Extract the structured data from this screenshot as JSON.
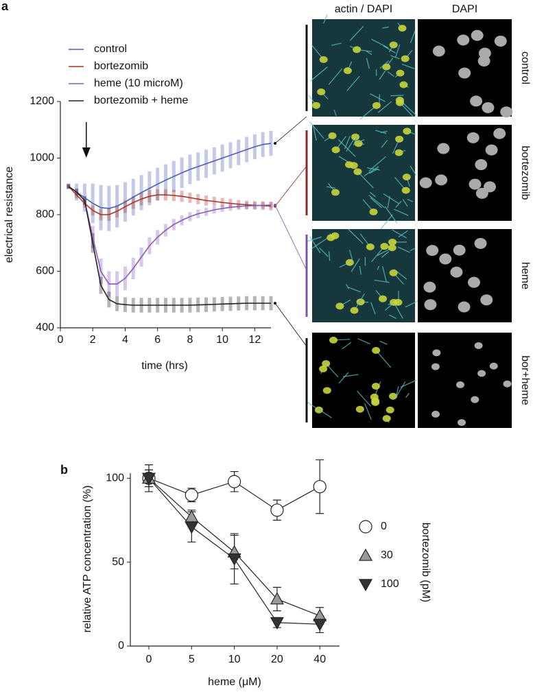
{
  "chart_data": [
    {
      "panel": "a",
      "type": "line",
      "xlabel": "time (hrs)",
      "ylabel": "electrical resistance",
      "x": [
        0.5,
        1,
        1.5,
        2,
        2.5,
        3,
        3.5,
        4,
        4.5,
        5,
        5.5,
        6,
        6.5,
        7,
        7.5,
        8,
        8.5,
        9,
        9.5,
        10,
        10.5,
        11,
        11.5,
        12,
        12.5,
        13
      ],
      "xlim": [
        0,
        13
      ],
      "xticks": [
        0,
        2,
        4,
        6,
        8,
        10,
        12
      ],
      "ylim": [
        400,
        1200
      ],
      "yticks": [
        400,
        600,
        800,
        1000,
        1200
      ],
      "arrow_at": 1.6,
      "series": [
        {
          "name": "control",
          "color": "#4a5fb0",
          "values": [
            900,
            880,
            860,
            840,
            825,
            822,
            830,
            845,
            862,
            878,
            893,
            908,
            922,
            935,
            948,
            960,
            970,
            980,
            990,
            1000,
            1010,
            1020,
            1030,
            1040,
            1048,
            1052
          ],
          "errors": [
            10,
            30,
            50,
            70,
            80,
            80,
            75,
            70,
            65,
            62,
            60,
            58,
            56,
            55,
            54,
            52,
            50,
            50,
            48,
            48,
            46,
            45,
            45,
            44,
            44,
            44
          ]
        },
        {
          "name": "bortezomib",
          "color": "#a83228",
          "values": [
            900,
            870,
            840,
            815,
            800,
            800,
            812,
            828,
            843,
            855,
            865,
            870,
            870,
            868,
            865,
            860,
            855,
            850,
            847,
            843,
            840,
            837,
            835,
            833,
            832,
            830
          ],
          "errors": [
            8,
            12,
            15,
            18,
            20,
            22,
            22,
            22,
            22,
            22,
            22,
            20,
            20,
            20,
            20,
            18,
            18,
            18,
            16,
            16,
            16,
            15,
            15,
            15,
            15,
            15
          ]
        },
        {
          "name": "heme (10 microM)",
          "color": "#8a5ab8",
          "values": [
            900,
            880,
            850,
            720,
            600,
            555,
            555,
            575,
            610,
            650,
            690,
            720,
            745,
            765,
            780,
            793,
            803,
            810,
            817,
            822,
            826,
            829,
            831,
            832,
            833,
            834
          ],
          "errors": [
            8,
            12,
            15,
            40,
            45,
            45,
            45,
            42,
            38,
            34,
            30,
            26,
            22,
            20,
            18,
            16,
            15,
            14,
            13,
            12,
            12,
            12,
            12,
            12,
            12,
            12
          ]
        },
        {
          "name": "bortezomib + heme",
          "color": "#222222",
          "values": [
            900,
            880,
            850,
            700,
            550,
            500,
            485,
            482,
            480,
            480,
            480,
            480,
            480,
            480,
            480,
            480,
            481,
            482,
            483,
            484,
            485,
            486,
            487,
            487,
            487,
            487
          ],
          "errors": [
            8,
            12,
            15,
            35,
            30,
            28,
            26,
            26,
            26,
            26,
            26,
            26,
            26,
            26,
            26,
            26,
            26,
            26,
            25,
            25,
            25,
            25,
            25,
            25,
            25,
            25
          ]
        }
      ]
    },
    {
      "panel": "b",
      "type": "line",
      "xlabel": "heme (μM)",
      "ylabel": "relative ATP concentration (%)",
      "categories": [
        "0",
        "5",
        "10",
        "20",
        "40"
      ],
      "ylim": [
        0,
        103
      ],
      "yticks": [
        0,
        50,
        100
      ],
      "legend_title": "bortezomib (pM)",
      "series": [
        {
          "name": "0",
          "color": "#ffffff",
          "marker": "circle",
          "values": [
            100,
            90,
            98,
            81,
            95
          ],
          "errors": [
            8,
            4,
            6,
            6,
            16
          ]
        },
        {
          "name": "30",
          "color": "#999999",
          "marker": "triangle-up",
          "values": [
            100,
            77,
            56,
            28,
            18
          ],
          "errors": [
            5,
            4,
            10,
            7,
            5
          ]
        },
        {
          "name": "100",
          "color": "#333333",
          "marker": "triangle-down",
          "values": [
            100,
            71,
            52,
            14,
            13
          ],
          "errors": [
            5,
            9,
            15,
            3,
            5
          ]
        }
      ]
    }
  ],
  "micrographs": {
    "columns": [
      "actin / DAPI",
      "DAPI"
    ],
    "rows": [
      "control",
      "bortezomib",
      "heme",
      "bor+heme"
    ]
  }
}
